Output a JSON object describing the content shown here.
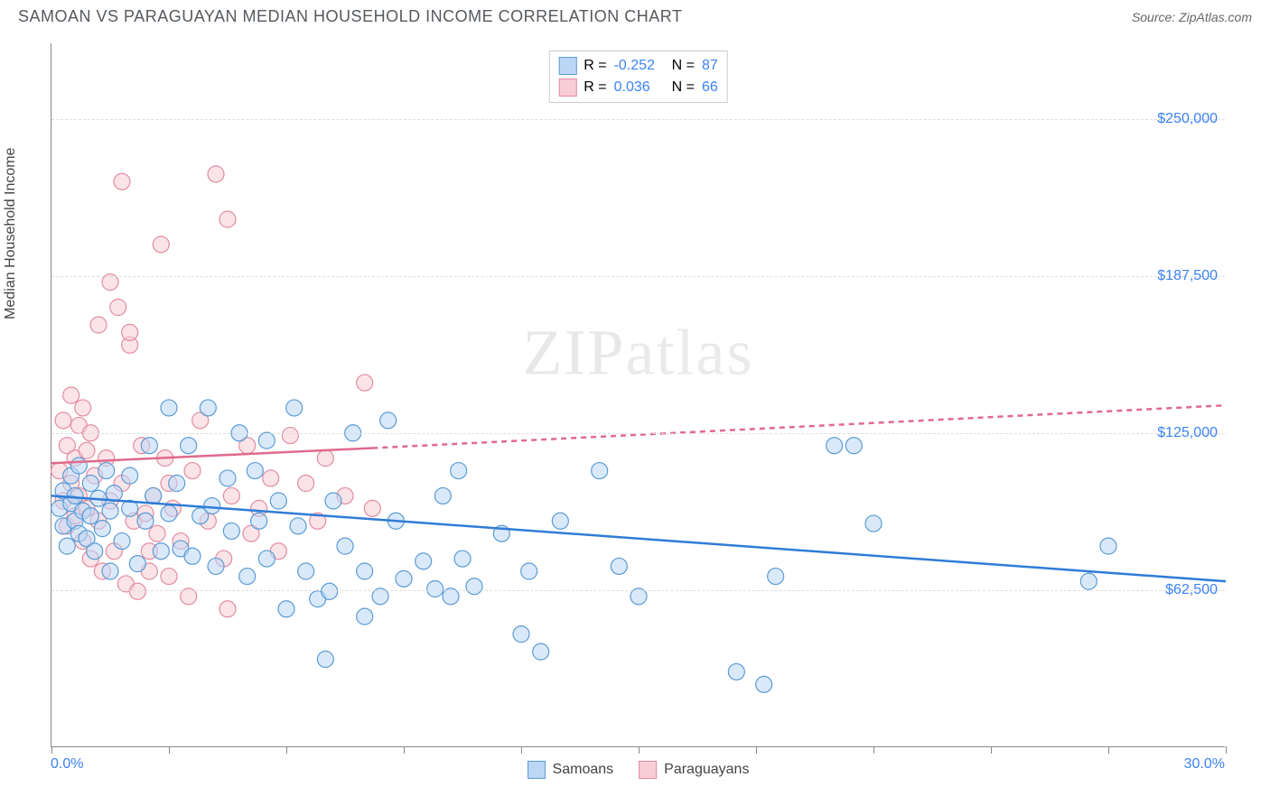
{
  "title": "SAMOAN VS PARAGUAYAN MEDIAN HOUSEHOLD INCOME CORRELATION CHART",
  "source": "Source: ZipAtlas.com",
  "watermark_a": "ZIP",
  "watermark_b": "atlas",
  "y_axis_title": "Median Household Income",
  "colors": {
    "blue_fill": "#bcd7f5",
    "blue_stroke": "#5a9bd5",
    "pink_fill": "#f8cdd6",
    "pink_stroke": "#e38ba3",
    "blue_line": "#2f7cd6",
    "pink_line": "#e06a8c",
    "text_blue": "#3b82f6",
    "grid": "#dddddd",
    "axis": "#888888"
  },
  "chart": {
    "type": "scatter",
    "xlim": [
      0,
      30
    ],
    "ylim": [
      0,
      280000
    ],
    "x_ticks": [
      0,
      3,
      6,
      9,
      12,
      15,
      18,
      21,
      24,
      27,
      30
    ],
    "y_gridlines": [
      62500,
      125000,
      187500,
      250000
    ],
    "y_tick_labels": [
      "$62,500",
      "$125,000",
      "$187,500",
      "$250,000"
    ],
    "x_min_label": "0.0%",
    "x_max_label": "30.0%",
    "marker_radius": 9,
    "marker_opacity": 0.55,
    "line_width": 2.5
  },
  "legend_top": [
    {
      "swatch_fill": "#bcd7f5",
      "swatch_stroke": "#5a9bd5",
      "r_label": "R =",
      "r_value": "-0.252",
      "n_label": "N =",
      "n_value": "87"
    },
    {
      "swatch_fill": "#f8cdd6",
      "swatch_stroke": "#e38ba3",
      "r_label": "R =",
      "r_value": "0.036",
      "n_label": "N =",
      "n_value": "66"
    }
  ],
  "legend_bottom": [
    {
      "swatch_fill": "#bcd7f5",
      "swatch_stroke": "#5a9bd5",
      "label": "Samoans"
    },
    {
      "swatch_fill": "#f8cdd6",
      "swatch_stroke": "#e38ba3",
      "label": "Paraguayans"
    }
  ],
  "trend_lines": {
    "blue": {
      "x1": 0,
      "y1": 100000,
      "x2": 30,
      "y2": 66000
    },
    "pink_solid": {
      "x1": 0,
      "y1": 113000,
      "x2": 8.2,
      "y2": 119000
    },
    "pink_dash": {
      "x1": 8.2,
      "y1": 119000,
      "x2": 30,
      "y2": 136000
    }
  },
  "series": {
    "samoans": [
      [
        0.2,
        95000
      ],
      [
        0.3,
        88000
      ],
      [
        0.3,
        102000
      ],
      [
        0.4,
        80000
      ],
      [
        0.5,
        97000
      ],
      [
        0.5,
        108000
      ],
      [
        0.6,
        90000
      ],
      [
        0.6,
        100000
      ],
      [
        0.7,
        85000
      ],
      [
        0.7,
        112000
      ],
      [
        0.8,
        94000
      ],
      [
        0.9,
        83000
      ],
      [
        1.0,
        105000
      ],
      [
        1.0,
        92000
      ],
      [
        1.1,
        78000
      ],
      [
        1.2,
        99000
      ],
      [
        1.3,
        87000
      ],
      [
        1.4,
        110000
      ],
      [
        1.5,
        94000
      ],
      [
        1.5,
        70000
      ],
      [
        1.6,
        101000
      ],
      [
        1.8,
        82000
      ],
      [
        2.0,
        108000
      ],
      [
        2.0,
        95000
      ],
      [
        2.2,
        73000
      ],
      [
        2.4,
        90000
      ],
      [
        2.5,
        120000
      ],
      [
        2.6,
        100000
      ],
      [
        2.8,
        78000
      ],
      [
        3.0,
        93000
      ],
      [
        3.0,
        135000
      ],
      [
        3.2,
        105000
      ],
      [
        3.3,
        79000
      ],
      [
        3.5,
        120000
      ],
      [
        3.6,
        76000
      ],
      [
        3.8,
        92000
      ],
      [
        4.0,
        135000
      ],
      [
        4.1,
        96000
      ],
      [
        4.2,
        72000
      ],
      [
        4.5,
        107000
      ],
      [
        4.6,
        86000
      ],
      [
        4.8,
        125000
      ],
      [
        5.0,
        68000
      ],
      [
        5.2,
        110000
      ],
      [
        5.3,
        90000
      ],
      [
        5.5,
        75000
      ],
      [
        5.5,
        122000
      ],
      [
        5.8,
        98000
      ],
      [
        6.0,
        55000
      ],
      [
        6.2,
        135000
      ],
      [
        6.3,
        88000
      ],
      [
        6.5,
        70000
      ],
      [
        6.8,
        59000
      ],
      [
        7.0,
        35000
      ],
      [
        7.1,
        62000
      ],
      [
        7.2,
        98000
      ],
      [
        7.5,
        80000
      ],
      [
        7.7,
        125000
      ],
      [
        8.0,
        70000
      ],
      [
        8.0,
        52000
      ],
      [
        8.4,
        60000
      ],
      [
        8.6,
        130000
      ],
      [
        8.8,
        90000
      ],
      [
        9.0,
        67000
      ],
      [
        9.5,
        74000
      ],
      [
        9.8,
        63000
      ],
      [
        10.0,
        100000
      ],
      [
        10.2,
        60000
      ],
      [
        10.4,
        110000
      ],
      [
        10.5,
        75000
      ],
      [
        10.8,
        64000
      ],
      [
        11.5,
        85000
      ],
      [
        12.0,
        45000
      ],
      [
        12.2,
        70000
      ],
      [
        12.5,
        38000
      ],
      [
        13.0,
        90000
      ],
      [
        14.0,
        110000
      ],
      [
        14.5,
        72000
      ],
      [
        15.0,
        60000
      ],
      [
        17.5,
        30000
      ],
      [
        18.2,
        25000
      ],
      [
        18.5,
        68000
      ],
      [
        20.0,
        120000
      ],
      [
        20.5,
        120000
      ],
      [
        21.0,
        89000
      ],
      [
        26.5,
        66000
      ],
      [
        27.0,
        80000
      ]
    ],
    "paraguayans": [
      [
        0.2,
        110000
      ],
      [
        0.3,
        98000
      ],
      [
        0.3,
        130000
      ],
      [
        0.4,
        120000
      ],
      [
        0.4,
        88000
      ],
      [
        0.5,
        105000
      ],
      [
        0.5,
        140000
      ],
      [
        0.6,
        115000
      ],
      [
        0.6,
        92000
      ],
      [
        0.7,
        128000
      ],
      [
        0.7,
        100000
      ],
      [
        0.8,
        135000
      ],
      [
        0.8,
        82000
      ],
      [
        0.9,
        118000
      ],
      [
        0.9,
        95000
      ],
      [
        1.0,
        125000
      ],
      [
        1.0,
        75000
      ],
      [
        1.1,
        108000
      ],
      [
        1.2,
        168000
      ],
      [
        1.2,
        90000
      ],
      [
        1.3,
        70000
      ],
      [
        1.4,
        115000
      ],
      [
        1.5,
        185000
      ],
      [
        1.5,
        98000
      ],
      [
        1.6,
        78000
      ],
      [
        1.7,
        175000
      ],
      [
        1.8,
        225000
      ],
      [
        1.8,
        105000
      ],
      [
        1.9,
        65000
      ],
      [
        2.0,
        160000
      ],
      [
        2.0,
        165000
      ],
      [
        2.1,
        90000
      ],
      [
        2.2,
        62000
      ],
      [
        2.3,
        120000
      ],
      [
        2.4,
        93000
      ],
      [
        2.5,
        78000
      ],
      [
        2.5,
        70000
      ],
      [
        2.6,
        100000
      ],
      [
        2.7,
        85000
      ],
      [
        2.8,
        200000
      ],
      [
        2.9,
        115000
      ],
      [
        3.0,
        105000
      ],
      [
        3.0,
        68000
      ],
      [
        3.1,
        95000
      ],
      [
        3.3,
        82000
      ],
      [
        3.5,
        60000
      ],
      [
        3.6,
        110000
      ],
      [
        3.8,
        130000
      ],
      [
        4.0,
        90000
      ],
      [
        4.2,
        228000
      ],
      [
        4.4,
        75000
      ],
      [
        4.5,
        55000
      ],
      [
        4.5,
        210000
      ],
      [
        4.6,
        100000
      ],
      [
        5.0,
        120000
      ],
      [
        5.1,
        85000
      ],
      [
        5.3,
        95000
      ],
      [
        5.6,
        107000
      ],
      [
        5.8,
        78000
      ],
      [
        6.1,
        124000
      ],
      [
        6.5,
        105000
      ],
      [
        6.8,
        90000
      ],
      [
        7.0,
        115000
      ],
      [
        7.5,
        100000
      ],
      [
        8.0,
        145000
      ],
      [
        8.2,
        95000
      ]
    ]
  }
}
